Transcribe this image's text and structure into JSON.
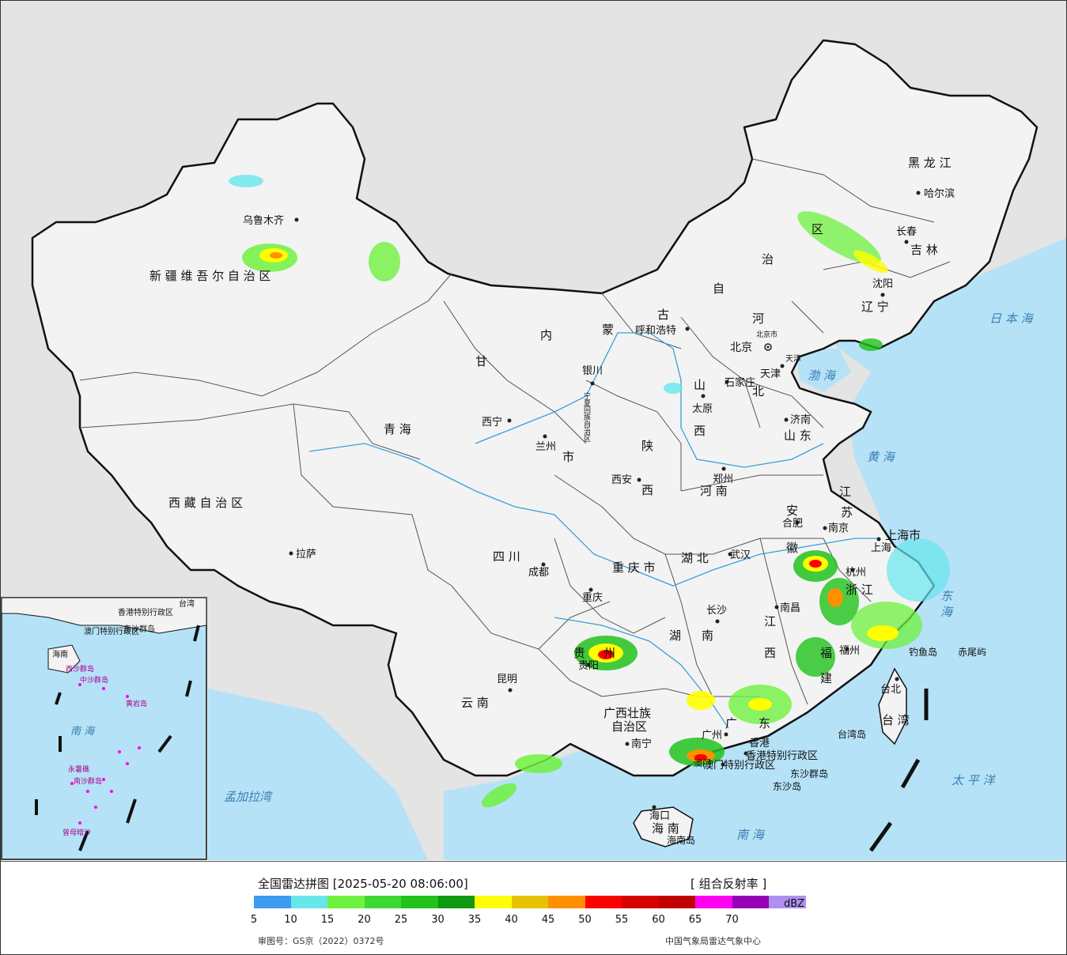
{
  "map": {
    "provinces": [
      {
        "id": "xinjiang",
        "name": "新 疆 维 吾 尔 自 治 区"
      },
      {
        "id": "xizang",
        "name": "西 藏 自 治 区"
      },
      {
        "id": "qinghai",
        "name": "青   海"
      },
      {
        "id": "gansu",
        "name": "甘"
      },
      {
        "id": "neimenggu_1",
        "name": "内"
      },
      {
        "id": "neimenggu_2",
        "name": "蒙"
      },
      {
        "id": "neimenggu_3",
        "name": "古"
      },
      {
        "id": "neimenggu_4",
        "name": "自"
      },
      {
        "id": "neimenggu_5",
        "name": "治"
      },
      {
        "id": "neimenggu_6",
        "name": "区"
      },
      {
        "id": "heilongjiang",
        "name": "黑 龙 江"
      },
      {
        "id": "jilin",
        "name": "吉 林"
      },
      {
        "id": "liaoning",
        "name": "辽 宁"
      },
      {
        "id": "hebei_1",
        "name": "河"
      },
      {
        "id": "hebei_2",
        "name": "北"
      },
      {
        "id": "shanxi_1",
        "name": "山"
      },
      {
        "id": "shanxi_2",
        "name": "西"
      },
      {
        "id": "shandong",
        "name": "山 东"
      },
      {
        "id": "shaanxi_1",
        "name": "陕"
      },
      {
        "id": "shaanxi_2",
        "name": "西"
      },
      {
        "id": "henan",
        "name": "河 南"
      },
      {
        "id": "jiangsu_1",
        "name": "江"
      },
      {
        "id": "jiangsu_2",
        "name": "苏"
      },
      {
        "id": "anhui_1",
        "name": "安"
      },
      {
        "id": "anhui_2",
        "name": "徽"
      },
      {
        "id": "sichuan",
        "name": "四   川"
      },
      {
        "id": "chongqing",
        "name": "重 庆 市"
      },
      {
        "id": "hubei",
        "name": "湖   北"
      },
      {
        "id": "hunan_1",
        "name": "湖"
      },
      {
        "id": "hunan_2",
        "name": "南"
      },
      {
        "id": "jiangxi_1",
        "name": "江"
      },
      {
        "id": "jiangxi_2",
        "name": "西"
      },
      {
        "id": "zhejiang",
        "name": "浙 江"
      },
      {
        "id": "fujian_1",
        "name": "福"
      },
      {
        "id": "fujian_2",
        "name": "建"
      },
      {
        "id": "guizhou_1",
        "name": "贵"
      },
      {
        "id": "guizhou_2",
        "name": "州"
      },
      {
        "id": "yunnan",
        "name": "云   南"
      },
      {
        "id": "guangxi_1",
        "name": "广西壮族"
      },
      {
        "id": "guangxi_2",
        "name": "自治区"
      },
      {
        "id": "guangdong_1",
        "name": "广"
      },
      {
        "id": "guangdong_2",
        "name": "东"
      },
      {
        "id": "hainan",
        "name": "海   南"
      },
      {
        "id": "taiwan",
        "name": "台 湾"
      },
      {
        "id": "shanghai",
        "name": "上海市"
      },
      {
        "id": "gansu_city",
        "name": "市"
      },
      {
        "id": "ningxia",
        "name": "宁夏回族自治区"
      },
      {
        "id": "hongkong",
        "name": "香港特别行政区"
      },
      {
        "id": "macau",
        "name": "澳门特别行政区"
      }
    ],
    "cities": [
      {
        "id": "urumqi",
        "name": "乌鲁木齐"
      },
      {
        "id": "lhasa",
        "name": "拉萨"
      },
      {
        "id": "xining",
        "name": "西宁"
      },
      {
        "id": "lanzhou",
        "name": "兰州"
      },
      {
        "id": "yinchuan",
        "name": "银川"
      },
      {
        "id": "hohhot",
        "name": "呼和浩特"
      },
      {
        "id": "harbin",
        "name": "哈尔滨"
      },
      {
        "id": "changchun",
        "name": "长春"
      },
      {
        "id": "shenyang",
        "name": "沈阳"
      },
      {
        "id": "beijing",
        "name": "北京"
      },
      {
        "id": "beijing_city",
        "name": "北京市"
      },
      {
        "id": "tianjin",
        "name": "天津"
      },
      {
        "id": "tianjin_city",
        "name": "天津"
      },
      {
        "id": "shijiazhuang",
        "name": "石家庄"
      },
      {
        "id": "taiyuan",
        "name": "太原"
      },
      {
        "id": "jinan",
        "name": "济南"
      },
      {
        "id": "zhengzhou",
        "name": "郑州"
      },
      {
        "id": "xian",
        "name": "西安"
      },
      {
        "id": "hefei",
        "name": "合肥"
      },
      {
        "id": "nanjing",
        "name": "南京"
      },
      {
        "id": "shanghai_city",
        "name": "上海"
      },
      {
        "id": "hangzhou",
        "name": "杭州"
      },
      {
        "id": "wuhan",
        "name": "武汉"
      },
      {
        "id": "chengdu",
        "name": "成都"
      },
      {
        "id": "chongqing_city",
        "name": "重庆"
      },
      {
        "id": "changsha",
        "name": "长沙"
      },
      {
        "id": "nanchang",
        "name": "南昌"
      },
      {
        "id": "fuzhou",
        "name": "福州"
      },
      {
        "id": "guiyang",
        "name": "贵阳"
      },
      {
        "id": "kunming",
        "name": "昆明"
      },
      {
        "id": "nanning",
        "name": "南宁"
      },
      {
        "id": "guangzhou",
        "name": "广州"
      },
      {
        "id": "hongkong_city",
        "name": "香港"
      },
      {
        "id": "haikou",
        "name": "海口"
      },
      {
        "id": "taibei",
        "name": "台北"
      },
      {
        "id": "macau_city",
        "name": "澳门"
      }
    ],
    "seas": [
      {
        "id": "japan_sea",
        "name": "日 本 海"
      },
      {
        "id": "bohai",
        "name": "渤 海"
      },
      {
        "id": "yellow_sea",
        "name": "黄 海"
      },
      {
        "id": "east_sea",
        "name": "东 海"
      },
      {
        "id": "pacific",
        "name": "太   平   洋"
      },
      {
        "id": "south_sea",
        "name": "南      海"
      },
      {
        "id": "bengal",
        "name": "孟加拉湾"
      },
      {
        "id": "inset_south_sea",
        "name": "南   海"
      }
    ],
    "islands": [
      {
        "id": "diaoyu",
        "name": "钓鱼岛"
      },
      {
        "id": "chiwei",
        "name": "赤尾屿"
      },
      {
        "id": "dongsha",
        "name": "东沙群岛"
      },
      {
        "id": "dongsha_2",
        "name": "东沙岛"
      },
      {
        "id": "taiwan_island",
        "name": "台湾岛"
      },
      {
        "id": "hainan_island",
        "name": "海南岛"
      },
      {
        "id": "xisha",
        "name": "西沙群岛"
      },
      {
        "id": "zhongsha",
        "name": "中沙群岛"
      },
      {
        "id": "nansha",
        "name": "南沙群岛"
      },
      {
        "id": "zengmu",
        "name": "曾母暗沙"
      },
      {
        "id": "yongshu",
        "name": "永暑礁"
      },
      {
        "id": "huangyan",
        "name": "黄岩岛"
      },
      {
        "id": "inset_hk",
        "name": "香港特别行政区"
      },
      {
        "id": "inset_macau",
        "name": "澳门特别行政区"
      },
      {
        "id": "inset_dongsha",
        "name": "东沙群岛"
      },
      {
        "id": "inset_hainan",
        "name": "海南"
      },
      {
        "id": "inset_taiwan",
        "name": "台湾"
      }
    ],
    "colors": {
      "land": "#f4f4f4",
      "water": "#b5e2f7",
      "outside": "#e4e4e4",
      "border": "#111111",
      "river": "#3aa0d8"
    }
  },
  "legend": {
    "title": "全国雷达拼图 [2025-05-20 08:06:00]",
    "product": "[ 组合反射率 ]",
    "unit": "dBZ",
    "ticks": [
      "5",
      "10",
      "15",
      "20",
      "25",
      "30",
      "35",
      "40",
      "45",
      "50",
      "55",
      "60",
      "65",
      "70"
    ],
    "colors": [
      "#3d9cf0",
      "#67e6ec",
      "#6ff13f",
      "#3fd832",
      "#21c21c",
      "#0f9a0f",
      "#ffff00",
      "#e6c300",
      "#ff9000",
      "#ff0000",
      "#d60000",
      "#c00000",
      "#ff00f0",
      "#9700b4",
      "#ad90f0"
    ],
    "approval": "审图号：GS京（2022）0372号",
    "source": "中国气象局雷达气象中心"
  }
}
